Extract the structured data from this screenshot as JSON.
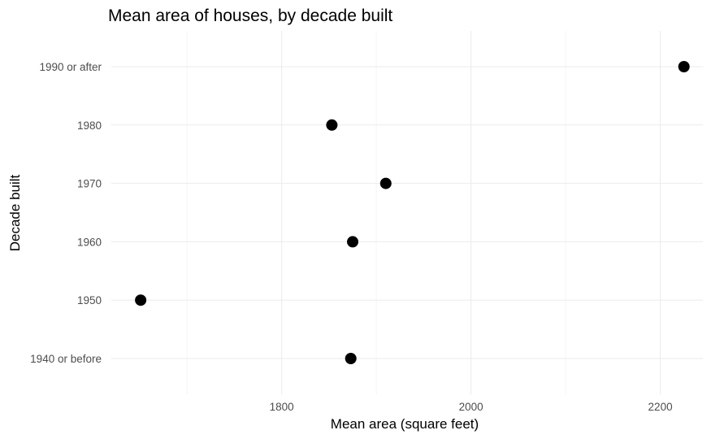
{
  "chart_data": {
    "type": "scatter",
    "title": "Mean area of houses, by decade built",
    "xlabel": "Mean area (square feet)",
    "ylabel": "Decade built",
    "xlim": [
      1620,
      2245
    ],
    "x_ticks": [
      1800,
      2000,
      2200
    ],
    "x_minor_ticks": [
      1700,
      1900,
      2100
    ],
    "categories": [
      "1940 or before",
      "1950",
      "1960",
      "1970",
      "1980",
      "1990 or after"
    ],
    "values": [
      1873,
      1651,
      1875,
      1910,
      1853,
      2225
    ],
    "grid": true,
    "legend": "none",
    "point_color": "#000000"
  }
}
